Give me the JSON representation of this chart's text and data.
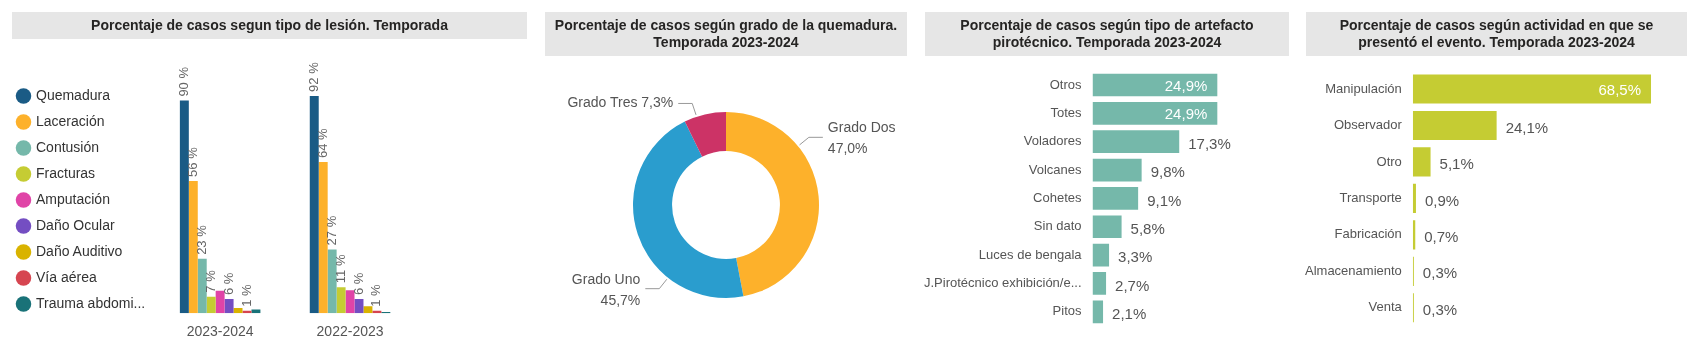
{
  "chart_data": [
    {
      "type": "bar",
      "title": "Porcentaje de casos segun tipo de lesión. Temporada",
      "categories": [
        "2023-2024",
        "2022-2023"
      ],
      "tick_labels": "x",
      "legend": "left",
      "series": [
        {
          "name": "Quemadura",
          "color": "#1a5b85",
          "values": [
            90,
            92
          ],
          "value_labels": [
            "90 %",
            "92 %"
          ]
        },
        {
          "name": "Laceración",
          "color": "#fdb12b",
          "values": [
            56,
            64
          ],
          "value_labels": [
            "56 %",
            "64 %"
          ]
        },
        {
          "name": "Contusión",
          "color": "#75b8aa",
          "values": [
            23,
            27
          ],
          "value_labels": [
            "23 %",
            "27 %"
          ]
        },
        {
          "name": "Fracturas",
          "color": "#c5cc33",
          "values": [
            7,
            11
          ],
          "value_labels": [
            "7 %",
            "11 %"
          ]
        },
        {
          "name": "Amputación",
          "color": "#e044a7",
          "values": [
            9.5,
            9.7
          ],
          "value_labels": [
            null,
            null
          ]
        },
        {
          "name": "Daño Ocular",
          "color": "#744ec2",
          "values": [
            6,
            6
          ],
          "value_labels": [
            "6 %",
            "6 %"
          ]
        },
        {
          "name": "Daño Auditivo",
          "color": "#d9b300",
          "values": [
            2.2,
            2.9
          ],
          "value_labels": [
            null,
            null
          ]
        },
        {
          "name": "Vía aérea",
          "color": "#d64550",
          "values": [
            1,
            1
          ],
          "value_labels": [
            "1 %",
            "1 %"
          ]
        },
        {
          "name": "Trauma abdomi...",
          "color": "#197278",
          "values": [
            1.6,
            0.5
          ],
          "value_labels": [
            null,
            null
          ]
        }
      ]
    },
    {
      "type": "donut",
      "title": "Porcentaje de casos según grado de la quemadura. Temporada 2023-2024",
      "categories": [
        "Grado Dos",
        "Grado Uno",
        "Grado Tres"
      ],
      "values": [
        47.0,
        45.7,
        7.3
      ],
      "colors": [
        "#fdb12b",
        "#2a9dce",
        "#cc3366"
      ],
      "value_labels": [
        "47,0%",
        "45,7%",
        "7,3%"
      ]
    },
    {
      "type": "bar",
      "orientation": "horizontal",
      "title": "Porcentaje de casos según tipo de artefacto pirotécnico. Temporada 2023-2024",
      "categories": [
        "Otros",
        "Totes",
        "Voladores",
        "Volcanes",
        "Cohetes",
        "Sin dato",
        "Luces de bengala",
        "J.Pirotécnico exhibición/e...",
        "Pitos"
      ],
      "values": [
        24.9,
        24.9,
        17.3,
        9.8,
        9.1,
        5.8,
        3.3,
        2.7,
        2.1
      ],
      "color": "#75b8aa",
      "value_labels": [
        "24,9%",
        "24,9%",
        "17,3%",
        "9,8%",
        "9,1%",
        "5,8%",
        "3,3%",
        "2,7%",
        "2,1%"
      ],
      "tick_labels": "y"
    },
    {
      "type": "bar",
      "orientation": "horizontal",
      "title": "Porcentaje de casos según actividad en que se presentó el evento. Temporada 2023-2024",
      "categories": [
        "Manipulación",
        "Observador",
        "Otro",
        "Transporte",
        "Fabricación",
        "Almacenamiento",
        "Venta"
      ],
      "values": [
        68.5,
        24.1,
        5.1,
        0.9,
        0.7,
        0.3,
        0.3
      ],
      "color": "#c5cc33",
      "value_labels": [
        "68,5%",
        "24,1%",
        "5,1%",
        "0,9%",
        "0,7%",
        "0,3%",
        "0,3%"
      ],
      "tick_labels": "y"
    }
  ]
}
